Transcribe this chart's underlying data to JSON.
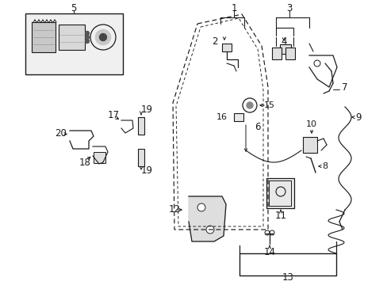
{
  "bg_color": "#ffffff",
  "fig_width": 4.89,
  "fig_height": 3.6,
  "dpi": 100,
  "line_color": "#1a1a1a",
  "gray_fill": "#d8d8d8",
  "light_gray": "#e8e8e8"
}
